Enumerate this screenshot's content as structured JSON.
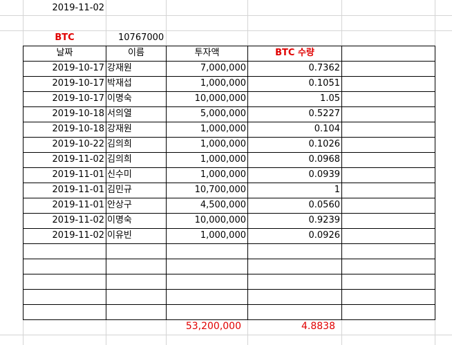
{
  "date_cell": "2019-11-02",
  "btc_label": "BTC",
  "btc_price": "10767000",
  "headers": {
    "date": "날짜",
    "name": "이름",
    "amount": "투자액",
    "btc_qty": "BTC 수량"
  },
  "rows": [
    {
      "date": "2019-10-17",
      "name": "강재원",
      "amount": "7,000,000",
      "btc": "0.7362"
    },
    {
      "date": "2019-10-17",
      "name": "박재섭",
      "amount": "1,000,000",
      "btc": "0.1051"
    },
    {
      "date": "2019-10-17",
      "name": "이명숙",
      "amount": "10,000,000",
      "btc": "1.05"
    },
    {
      "date": "2019-10-18",
      "name": "서의열",
      "amount": "5,000,000",
      "btc": "0.5227"
    },
    {
      "date": "2019-10-18",
      "name": "강재원",
      "amount": "1,000,000",
      "btc": "0.104"
    },
    {
      "date": "2019-10-22",
      "name": "김의희",
      "amount": "1,000,000",
      "btc": "0.1026"
    },
    {
      "date": "2019-11-02",
      "name": "김의희",
      "amount": "1,000,000",
      "btc": "0.0968"
    },
    {
      "date": "2019-11-01",
      "name": "신수미",
      "amount": "1,000,000",
      "btc": "0.0939"
    },
    {
      "date": "2019-11-01",
      "name": "김민규",
      "amount": "10,700,000",
      "btc": "1"
    },
    {
      "date": "2019-11-01",
      "name": "안상구",
      "amount": "4,500,000",
      "btc": "0.0560"
    },
    {
      "date": "2019-11-02",
      "name": "이명숙",
      "amount": "10,000,000",
      "btc": "0.9239"
    },
    {
      "date": "2019-11-02",
      "name": "이유빈",
      "amount": "1,000,000",
      "btc": "0.0926"
    }
  ],
  "totals": {
    "amount": "53,200,000",
    "btc": "4.8838"
  },
  "colors": {
    "accent_red": "#e00000",
    "gridline": "#d4d4d4",
    "border": "#000000"
  }
}
